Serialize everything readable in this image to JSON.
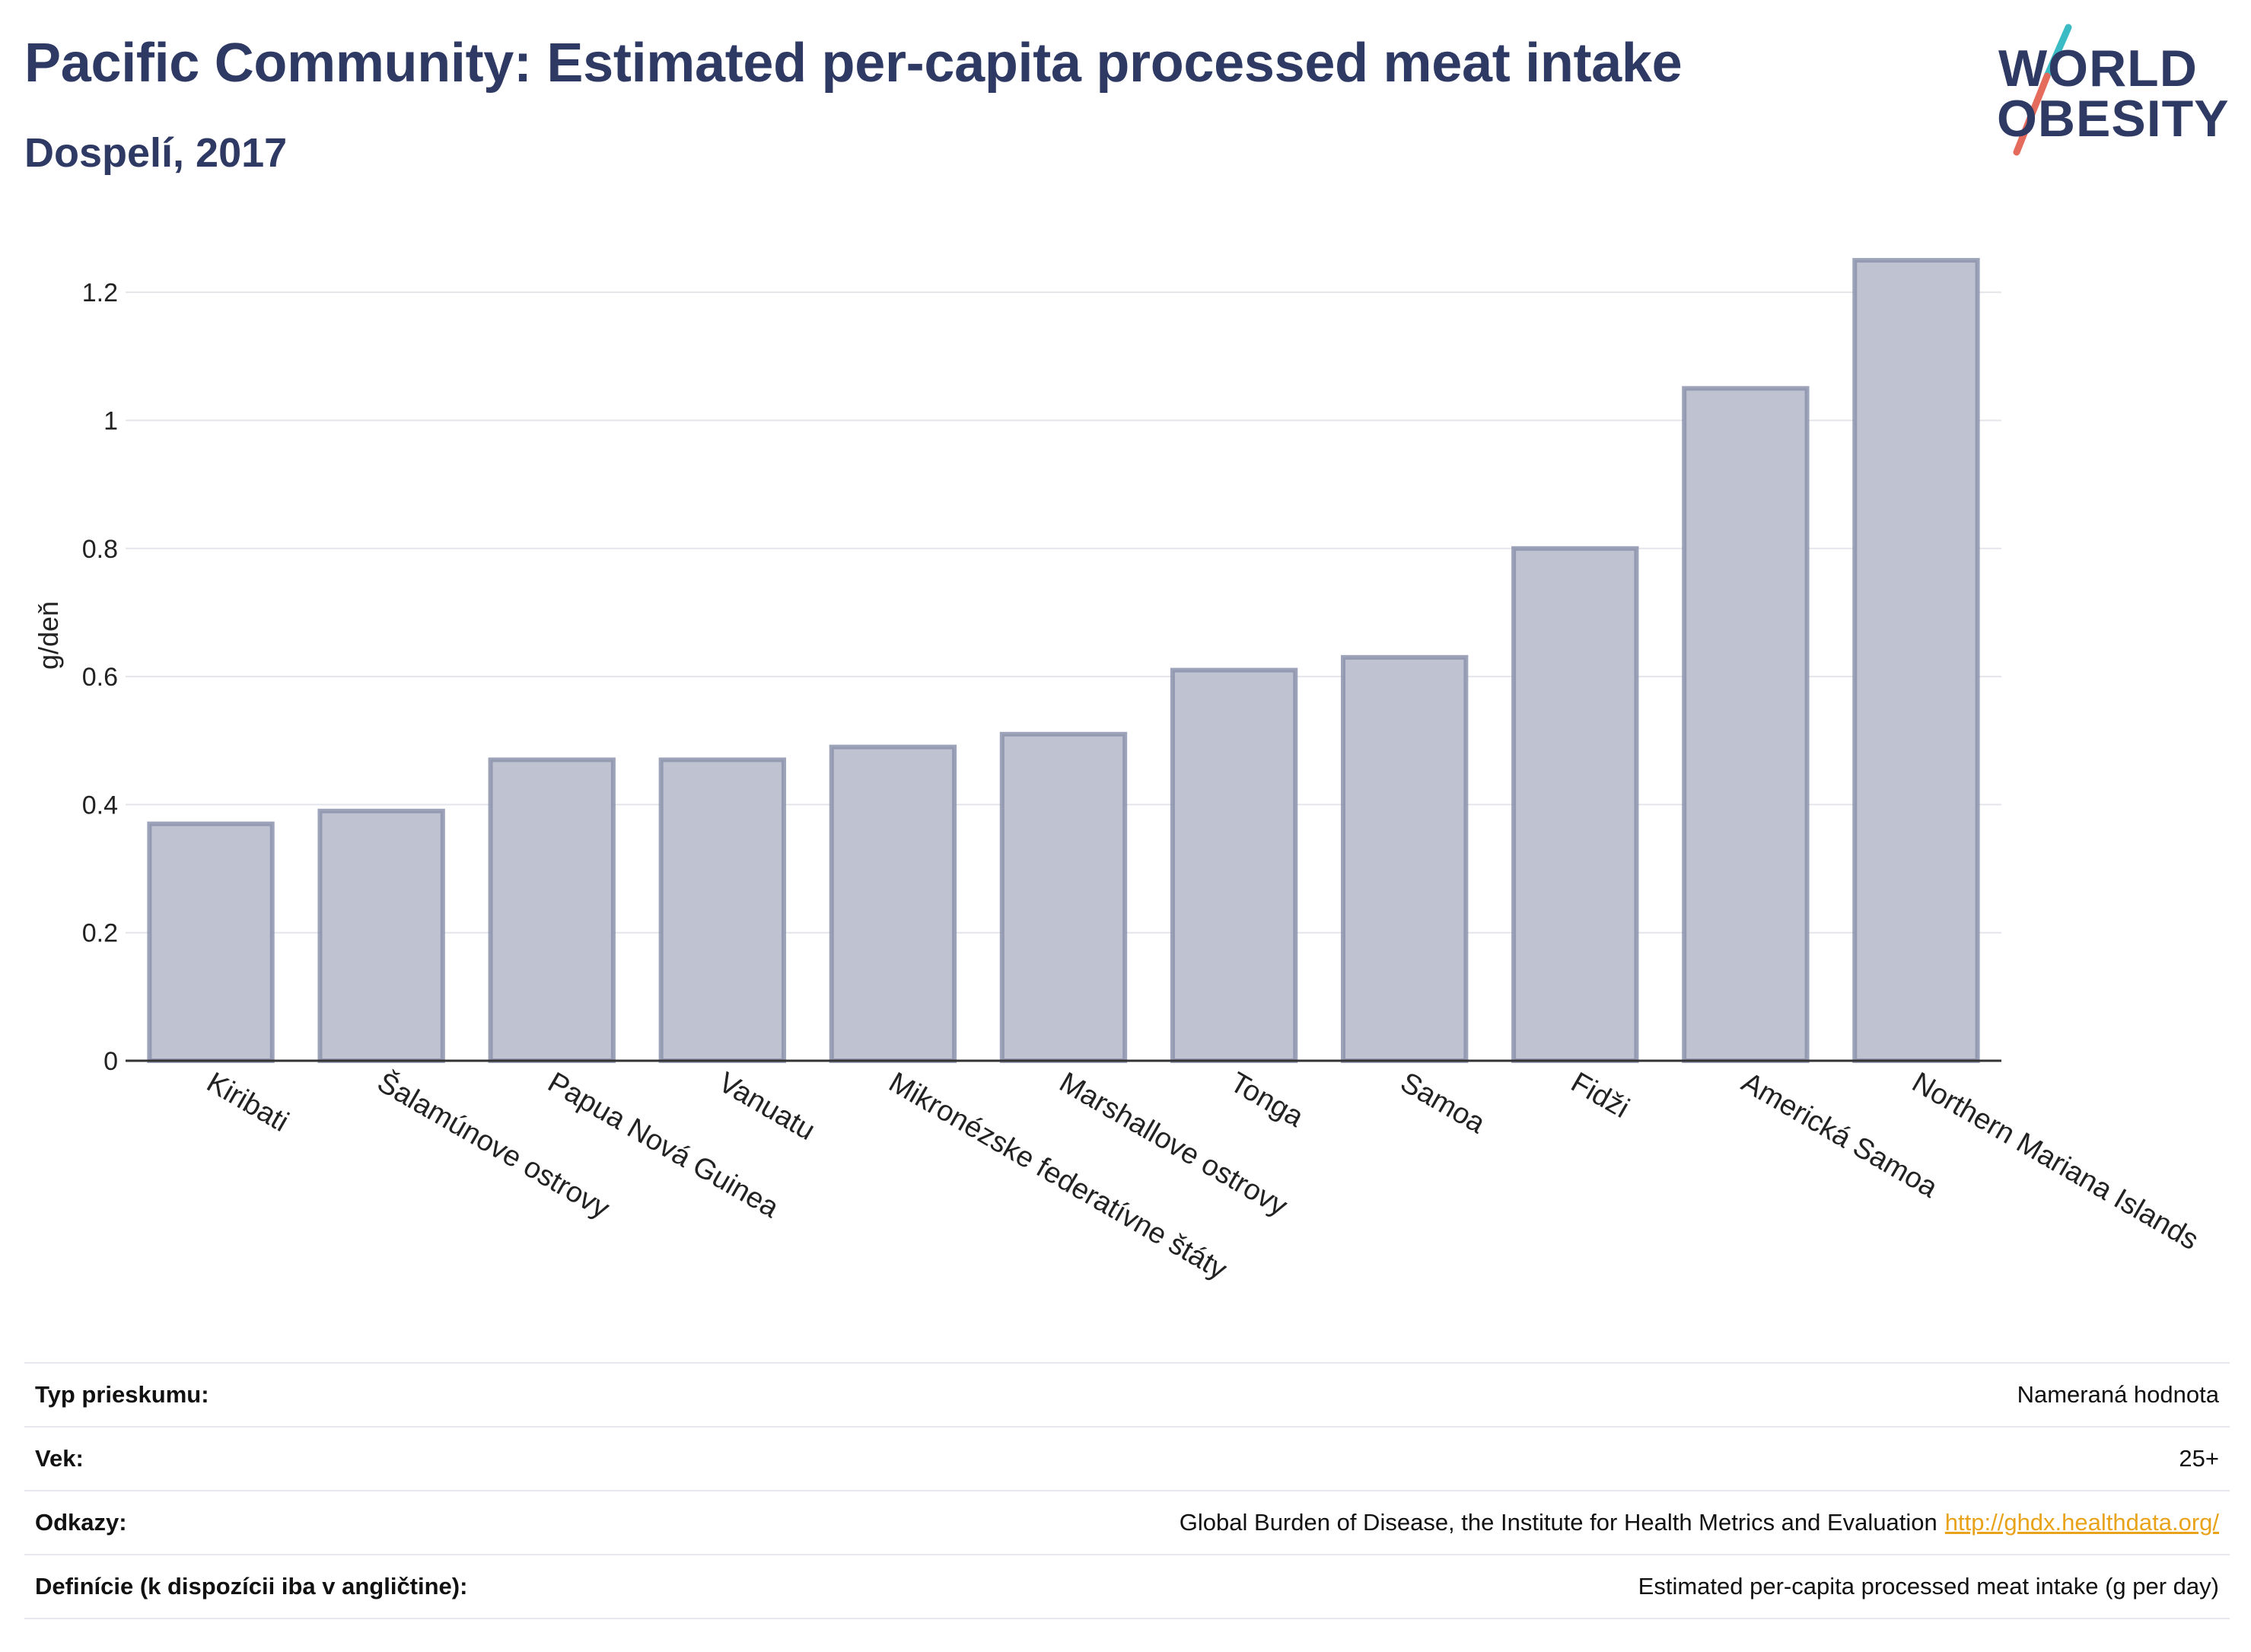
{
  "title": "Pacific Community: Estimated per-capita processed meat intake",
  "subtitle": "Dospelí, 2017",
  "logo": {
    "line1": "WORLD",
    "line2": "OBESITY"
  },
  "colors": {
    "title": "#2e3a63",
    "bar_fill": "#bfc3d1",
    "bar_stroke": "#8c93ad",
    "logo_teal": "#3bbcc4",
    "logo_coral": "#e56b5d",
    "link": "#e8a31a"
  },
  "chart_data": {
    "type": "bar",
    "categories": [
      "Kiribati",
      "Šalamúnove ostrovy",
      "Papua Nová Guinea",
      "Vanuatu",
      "Mikronézske federatívne štáty",
      "Marshallove ostrovy",
      "Tonga",
      "Samoa",
      "Fidži",
      "Americká Samoa",
      "Northern Mariana Islands"
    ],
    "values": [
      0.37,
      0.39,
      0.47,
      0.47,
      0.49,
      0.51,
      0.61,
      0.63,
      0.8,
      1.05,
      1.25
    ],
    "ylabel": "g/deň",
    "xlabel": "",
    "ylim": [
      0,
      1.3
    ],
    "yticks": [
      0,
      0.2,
      0.4,
      0.6,
      0.8,
      1,
      1.2
    ],
    "ytick_labels": [
      "0",
      "0.2",
      "0.4",
      "0.6",
      "0.8",
      "1",
      "1.2"
    ],
    "grid": true,
    "legend": "none"
  },
  "meta": {
    "survey_label": "Typ prieskumu:",
    "survey_value": "Nameraná hodnota",
    "age_label": "Vek:",
    "age_value": "25+",
    "refs_label": "Odkazy:",
    "refs_value": "Global Burden of Disease, the Institute for Health Metrics and Evaluation",
    "refs_link": "http://ghdx.healthdata.org/",
    "def_label": "Definície (k dispozícii iba v angličtine):",
    "def_value": "Estimated per-capita processed meat intake (g per day)"
  }
}
